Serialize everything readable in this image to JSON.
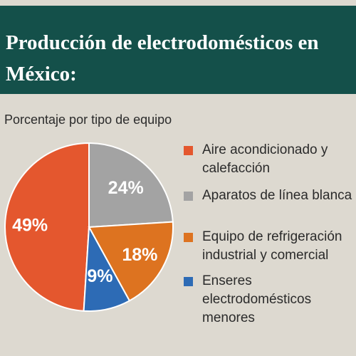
{
  "title": "Producción de electrodomésticos en México:",
  "subtitle": "Porcentaje por tipo de equipo",
  "chart_data": {
    "type": "pie",
    "categories": [
      "Aire acondicionado y calefacción",
      "Aparatos de línea blanca",
      "Equipo de refrigeración industrial y comercial",
      "Enseres electrodomésticos menores"
    ],
    "values": [
      49,
      24,
      18,
      9
    ],
    "value_labels": [
      "49%",
      "24%",
      "18%",
      "9%"
    ],
    "colors": [
      "#e4572e",
      "#a3a3a3",
      "#dd7320",
      "#2d6bb5"
    ],
    "legend_position": "right"
  },
  "legend": [
    {
      "label": "Aire acondicionado y calefacción",
      "color": "#e4572e"
    },
    {
      "label": "Aparatos de línea blanca",
      "color": "#a3a3a3"
    },
    {
      "label": "Equipo de refrigeración industrial y comercial",
      "color": "#dd7320"
    },
    {
      "label": "Enseres electrodomésticos menores",
      "color": "#2d6bb5"
    }
  ]
}
